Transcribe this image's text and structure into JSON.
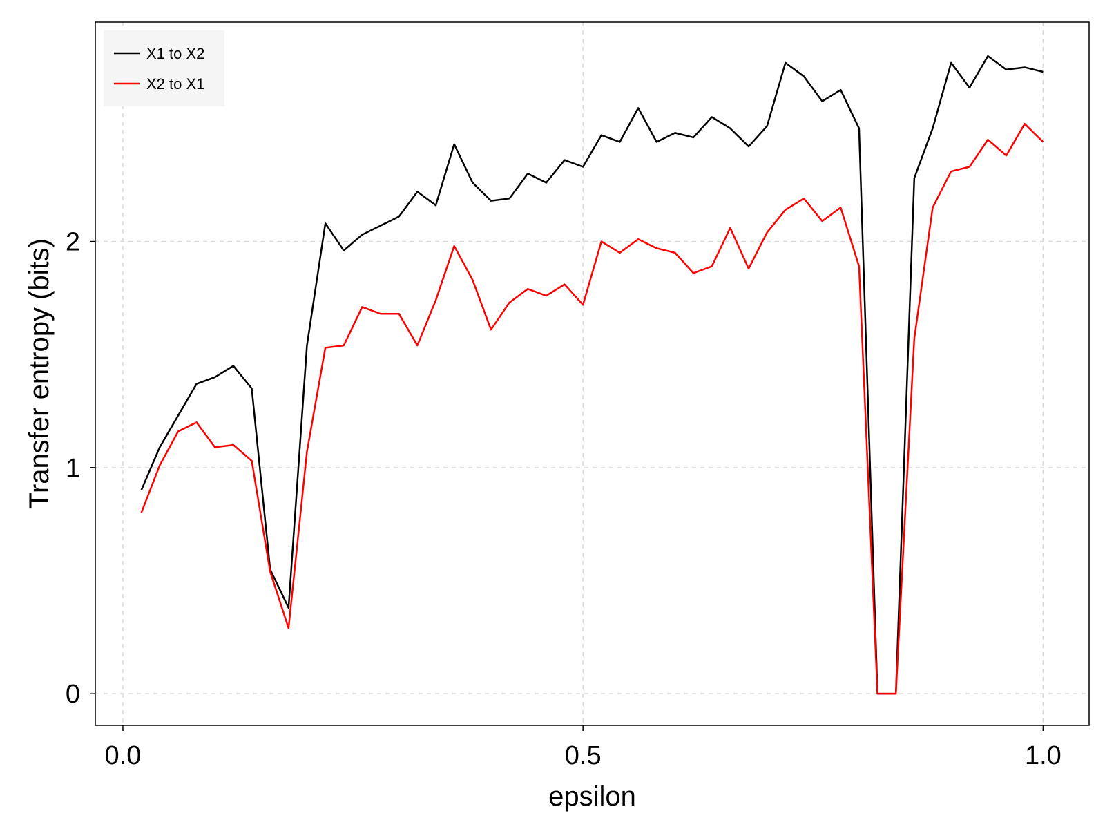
{
  "chart_data": {
    "type": "line",
    "title": "",
    "xlabel": "epsilon",
    "ylabel": "Transfer entropy (bits)",
    "xlim": [
      -0.03,
      1.05
    ],
    "ylim": [
      -0.14,
      2.97
    ],
    "xticks": [
      0.0,
      0.5,
      1.0
    ],
    "xtick_labels": [
      "0.0",
      "0.5",
      "1.0"
    ],
    "yticks": [
      0,
      1,
      2
    ],
    "ytick_labels": [
      "0",
      "1",
      "2"
    ],
    "grid": true,
    "legend_position": "top-left",
    "x": [
      0.02,
      0.04,
      0.06,
      0.08,
      0.1,
      0.12,
      0.14,
      0.16,
      0.18,
      0.2,
      0.22,
      0.24,
      0.26,
      0.28,
      0.3,
      0.32,
      0.34,
      0.36,
      0.38,
      0.4,
      0.42,
      0.44,
      0.46,
      0.48,
      0.5,
      0.52,
      0.54,
      0.56,
      0.58,
      0.6,
      0.62,
      0.64,
      0.66,
      0.68,
      0.7,
      0.72,
      0.74,
      0.76,
      0.78,
      0.8,
      0.82,
      0.84,
      0.86,
      0.88,
      0.9,
      0.92,
      0.94,
      0.96,
      0.98,
      1.0
    ],
    "series": [
      {
        "name": "X1 to X2",
        "color": "#000000",
        "values": [
          0.9,
          1.09,
          1.23,
          1.37,
          1.4,
          1.45,
          1.35,
          0.55,
          0.38,
          1.54,
          2.08,
          1.96,
          2.03,
          2.07,
          2.11,
          2.22,
          2.16,
          2.43,
          2.26,
          2.18,
          2.19,
          2.3,
          2.26,
          2.36,
          2.33,
          2.47,
          2.44,
          2.59,
          2.44,
          2.48,
          2.46,
          2.55,
          2.5,
          2.42,
          2.51,
          2.79,
          2.73,
          2.62,
          2.67,
          2.5,
          0.0,
          0.0,
          2.28,
          2.5,
          2.79,
          2.68,
          2.82,
          2.76,
          2.77,
          2.75
        ]
      },
      {
        "name": "X2 to X1",
        "color": "#ff0000",
        "values": [
          0.8,
          1.01,
          1.16,
          1.2,
          1.09,
          1.1,
          1.03,
          0.54,
          0.29,
          1.07,
          1.53,
          1.54,
          1.71,
          1.68,
          1.68,
          1.54,
          1.74,
          1.98,
          1.83,
          1.61,
          1.73,
          1.79,
          1.76,
          1.81,
          1.72,
          2.0,
          1.95,
          2.01,
          1.97,
          1.95,
          1.86,
          1.89,
          2.06,
          1.88,
          2.04,
          2.14,
          2.19,
          2.09,
          2.15,
          1.89,
          0.0,
          0.0,
          1.57,
          2.15,
          2.31,
          2.33,
          2.45,
          2.38,
          2.52,
          2.44
        ]
      }
    ]
  }
}
